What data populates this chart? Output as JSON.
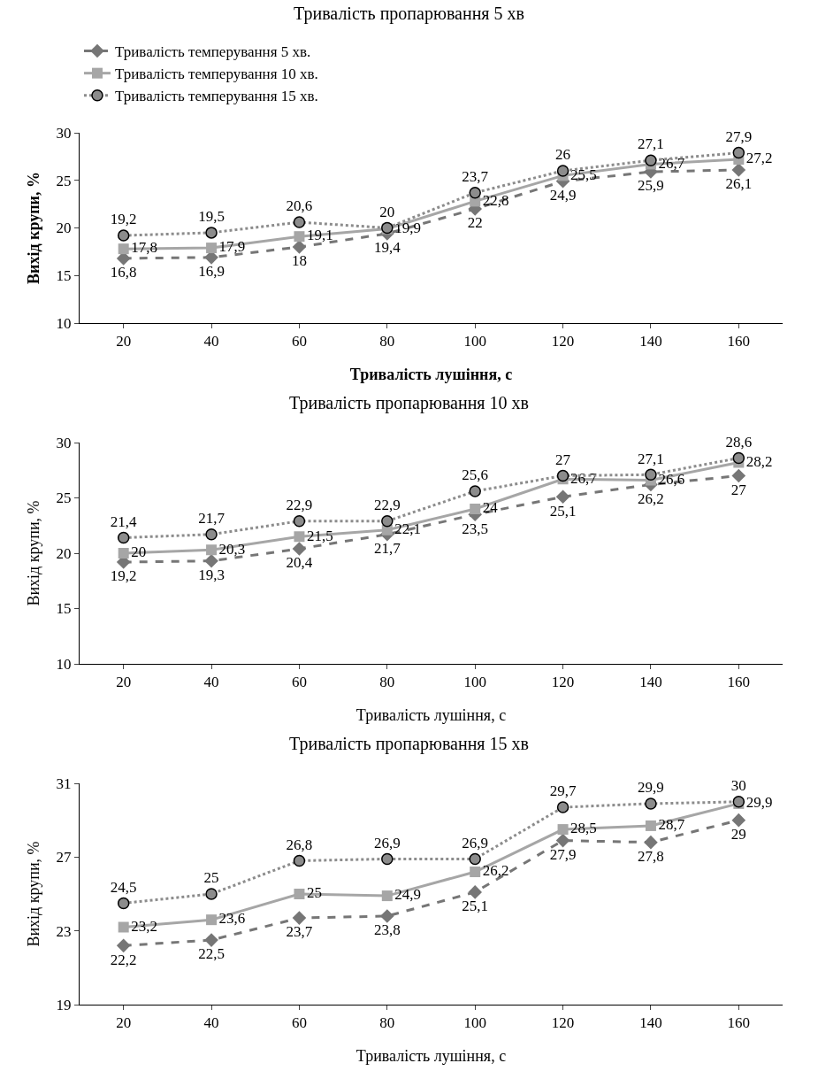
{
  "chart_data": [
    {
      "type": "line",
      "title": "Тривалість пропарювання 5 хв",
      "xlabel": "Тривалість лушіння, с",
      "ylabel": "Вихід крупи, %",
      "categories": [
        "20",
        "40",
        "60",
        "80",
        "100",
        "120",
        "140",
        "160"
      ],
      "ylim": [
        10,
        30
      ],
      "yticks": [
        10,
        15,
        20,
        25,
        30
      ],
      "grid": false,
      "legend": "top",
      "series": [
        {
          "name": "Тривалість темперування 5 хв.",
          "color": "#767676",
          "marker": "diamond",
          "line_style": "dashed",
          "values": [
            16.8,
            16.9,
            18,
            19.4,
            22,
            24.9,
            25.9,
            26.1
          ],
          "value_labels": [
            "16,8",
            "16,9",
            "18",
            "19,4",
            "22",
            "24,9",
            "25,9",
            "26,1"
          ]
        },
        {
          "name": "Тривалість темперування 10 хв.",
          "color": "#a6a6a6",
          "marker": "square",
          "line_style": "solid",
          "values": [
            17.8,
            17.9,
            19.1,
            19.9,
            22.8,
            25.5,
            26.7,
            27.2
          ],
          "value_labels": [
            "17,8",
            "17,9",
            "19,1",
            "19,9",
            "22,8",
            "25,5",
            "26,7",
            "27,2"
          ]
        },
        {
          "name": "Тривалість темперування 15 хв.",
          "color": "#8c8c8c",
          "marker": "circle",
          "line_style": "dotted",
          "values": [
            19.2,
            19.5,
            20.6,
            20,
            23.7,
            26,
            27.1,
            27.9
          ],
          "value_labels": [
            "19,2",
            "19,5",
            "20,6",
            "20",
            "23,7",
            "26",
            "27,1",
            "27,9"
          ]
        }
      ]
    },
    {
      "type": "line",
      "title": "Тривалість пропарювання 10 хв",
      "xlabel": "Тривалість лушіння, с",
      "ylabel": "Вихід крупи, %",
      "categories": [
        "20",
        "40",
        "60",
        "80",
        "100",
        "120",
        "140",
        "160"
      ],
      "ylim": [
        10,
        30
      ],
      "yticks": [
        10,
        15,
        20,
        25,
        30
      ],
      "grid": false,
      "series": [
        {
          "color": "#767676",
          "marker": "diamond",
          "line_style": "dashed",
          "values": [
            19.2,
            19.3,
            20.4,
            21.7,
            23.5,
            25.1,
            26.2,
            27
          ],
          "value_labels": [
            "19,2",
            "19,3",
            "20,4",
            "21,7",
            "23,5",
            "25,1",
            "26,2",
            "27"
          ]
        },
        {
          "color": "#a6a6a6",
          "marker": "square",
          "line_style": "solid",
          "values": [
            20,
            20.3,
            21.5,
            22.1,
            24,
            26.7,
            26.6,
            28.2
          ],
          "value_labels": [
            "20",
            "20,3",
            "21,5",
            "22,1",
            "24",
            "26,7",
            "26,6",
            "28,2"
          ]
        },
        {
          "color": "#8c8c8c",
          "marker": "circle",
          "line_style": "dotted",
          "values": [
            21.4,
            21.7,
            22.9,
            22.9,
            25.6,
            27,
            27.1,
            28.6
          ],
          "value_labels": [
            "21,4",
            "21,7",
            "22,9",
            "22,9",
            "25,6",
            "27",
            "27,1",
            "28,6"
          ]
        }
      ]
    },
    {
      "type": "line",
      "title": "Тривалість пропарювання 15 хв",
      "xlabel": "Тривалість лушіння, с",
      "ylabel": "Вихід крупи, %",
      "categories": [
        "20",
        "40",
        "60",
        "80",
        "100",
        "120",
        "140",
        "160"
      ],
      "ylim": [
        19,
        31
      ],
      "yticks": [
        19,
        23,
        27,
        31
      ],
      "grid": false,
      "series": [
        {
          "color": "#767676",
          "marker": "diamond",
          "line_style": "dashed",
          "values": [
            22.2,
            22.5,
            23.7,
            23.8,
            25.1,
            27.9,
            27.8,
            29
          ],
          "value_labels": [
            "22,2",
            "22,5",
            "23,7",
            "23,8",
            "25,1",
            "27,9",
            "27,8",
            "29"
          ]
        },
        {
          "color": "#a6a6a6",
          "marker": "square",
          "line_style": "solid",
          "values": [
            23.2,
            23.6,
            25,
            24.9,
            26.2,
            28.5,
            28.7,
            29.9
          ],
          "value_labels": [
            "23,2",
            "23,6",
            "25",
            "24,9",
            "26,2",
            "28,5",
            "28,7",
            "29,9"
          ]
        },
        {
          "color": "#8c8c8c",
          "marker": "circle",
          "line_style": "dotted",
          "values": [
            24.5,
            25,
            26.8,
            26.9,
            26.9,
            29.7,
            29.9,
            30
          ],
          "value_labels": [
            "24,5",
            "25",
            "26,8",
            "26,9",
            "26,9",
            "29,7",
            "29,9",
            "30"
          ]
        }
      ]
    }
  ]
}
